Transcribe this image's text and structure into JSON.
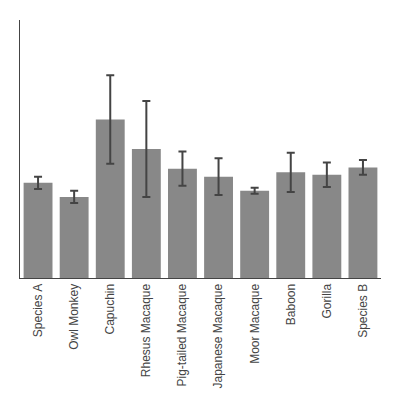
{
  "chart_data": {
    "type": "bar",
    "categories": [
      "Species A",
      "Owl Monkey",
      "Capuchin",
      "Rhesus Macaque",
      "Pig-tailed Macaque",
      "Japanese Macaque",
      "Moor Macaque",
      "Baboon",
      "Gorilla",
      "Species B"
    ],
    "values": [
      1.55,
      1.32,
      2.58,
      2.1,
      1.78,
      1.65,
      1.42,
      1.72,
      1.68,
      1.8
    ],
    "errors": [
      0.1,
      0.1,
      0.72,
      0.78,
      0.28,
      0.3,
      0.05,
      0.32,
      0.2,
      0.12
    ],
    "color": "#888888",
    "ylim": [
      0,
      4.2
    ],
    "grid": false,
    "tick_labels": "x"
  }
}
